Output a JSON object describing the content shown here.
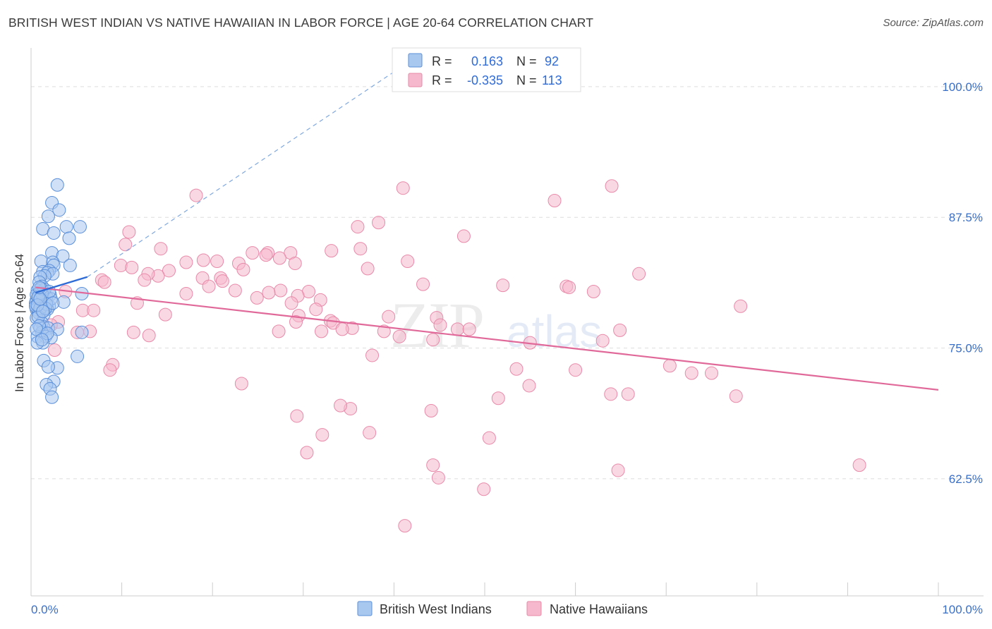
{
  "title": "BRITISH WEST INDIAN VS NATIVE HAWAIIAN IN LABOR FORCE | AGE 20-64 CORRELATION CHART",
  "source": "Source: ZipAtlas.com",
  "watermark": {
    "zip": "ZIP",
    "atlas": "atlas"
  },
  "colors": {
    "blue_fill": "#a9c8f0",
    "blue_stroke": "#5b8fd9",
    "blue_line": "#2f6bd6",
    "pink_fill": "#f6b8cc",
    "pink_stroke": "#e88aa9",
    "pink_line": "#e0699a",
    "grid": "#dddddd",
    "axis_label": "#3a6fc8"
  },
  "legend": {
    "rows": [
      {
        "r_label": "R =",
        "r_value": "0.163",
        "n_label": "N =",
        "n_value": "92"
      },
      {
        "r_label": "R =",
        "r_value": "-0.335",
        "n_label": "N =",
        "n_value": "113"
      }
    ]
  },
  "chart_data": {
    "type": "scatter",
    "title": "BRITISH WEST INDIAN VS NATIVE HAWAIIAN IN LABOR FORCE | AGE 20-64 CORRELATION CHART",
    "xlabel": "",
    "ylabel": "In Labor Force | Age 20-64",
    "xlim": [
      0,
      100
    ],
    "ylim": [
      51.3,
      103.7
    ],
    "x_tick_labels": [
      "0.0%",
      "100.0%"
    ],
    "y_ticks": [
      100.0,
      87.5,
      75.0,
      62.5
    ],
    "y_tick_labels": [
      "100.0%",
      "87.5%",
      "75.0%",
      "62.5%"
    ],
    "grid": true,
    "legend_placement": "top-center",
    "series": [
      {
        "name": "British West Indians",
        "r": 0.163,
        "n": 92,
        "trend": {
          "x0": 0.5,
          "y0": 80.3,
          "x1": 6.2,
          "y1": 81.8
        },
        "trend_dashed": {
          "x0": 6.2,
          "y0": 81.8,
          "x1": 40.5,
          "y1": 101.7
        },
        "points": [
          [
            2.9,
            90.6
          ],
          [
            2.3,
            88.9
          ],
          [
            3.1,
            88.2
          ],
          [
            1.9,
            87.6
          ],
          [
            5.4,
            86.6
          ],
          [
            3.9,
            86.6
          ],
          [
            1.3,
            86.4
          ],
          [
            2.5,
            86.0
          ],
          [
            4.2,
            85.5
          ],
          [
            2.3,
            84.1
          ],
          [
            3.5,
            83.8
          ],
          [
            1.1,
            83.3
          ],
          [
            2.4,
            83.2
          ],
          [
            4.3,
            82.9
          ],
          [
            2.5,
            82.9
          ],
          [
            2.0,
            82.4
          ],
          [
            1.3,
            82.3
          ],
          [
            1.8,
            82.2
          ],
          [
            2.4,
            82.1
          ],
          [
            1.5,
            81.9
          ],
          [
            1.0,
            81.8
          ],
          [
            0.9,
            81.3
          ],
          [
            1.2,
            80.9
          ],
          [
            0.7,
            80.5
          ],
          [
            0.9,
            80.3
          ],
          [
            1.4,
            80.3
          ],
          [
            5.6,
            80.2
          ],
          [
            2.1,
            80.1
          ],
          [
            1.0,
            80.0
          ],
          [
            1.7,
            79.9
          ],
          [
            0.8,
            79.8
          ],
          [
            1.1,
            79.6
          ],
          [
            0.6,
            79.6
          ],
          [
            1.3,
            79.5
          ],
          [
            0.9,
            79.4
          ],
          [
            1.5,
            79.4
          ],
          [
            3.6,
            79.4
          ],
          [
            0.5,
            79.3
          ],
          [
            0.9,
            79.2
          ],
          [
            1.6,
            79.1
          ],
          [
            1.1,
            79.0
          ],
          [
            2.0,
            79.0
          ],
          [
            0.7,
            78.9
          ],
          [
            1.2,
            78.9
          ],
          [
            0.6,
            78.7
          ],
          [
            1.8,
            78.7
          ],
          [
            1.4,
            78.6
          ],
          [
            0.8,
            78.4
          ],
          [
            0.9,
            78.3
          ],
          [
            1.4,
            78.2
          ],
          [
            0.6,
            77.9
          ],
          [
            1.2,
            77.4
          ],
          [
            1.4,
            77.0
          ],
          [
            1.0,
            76.9
          ],
          [
            1.9,
            76.9
          ],
          [
            2.9,
            76.8
          ],
          [
            5.6,
            76.5
          ],
          [
            1.2,
            76.5
          ],
          [
            0.7,
            76.1
          ],
          [
            1.6,
            76.1
          ],
          [
            2.2,
            76.0
          ],
          [
            1.3,
            75.5
          ],
          [
            0.7,
            75.5
          ],
          [
            5.1,
            74.2
          ],
          [
            1.4,
            73.8
          ],
          [
            2.9,
            73.1
          ],
          [
            1.9,
            73.2
          ],
          [
            2.5,
            71.8
          ],
          [
            1.7,
            71.5
          ],
          [
            2.1,
            71.1
          ],
          [
            2.3,
            70.3
          ],
          [
            0.5,
            79.0
          ],
          [
            1.0,
            78.8
          ],
          [
            0.6,
            80.1
          ],
          [
            0.8,
            78.0
          ],
          [
            1.5,
            80.6
          ],
          [
            2.2,
            79.7
          ],
          [
            1.2,
            80.2
          ],
          [
            0.9,
            77.1
          ],
          [
            1.7,
            79.2
          ],
          [
            1.1,
            80.7
          ],
          [
            0.8,
            79.9
          ],
          [
            1.6,
            78.8
          ],
          [
            2.0,
            80.4
          ],
          [
            0.7,
            79.1
          ],
          [
            1.3,
            78.5
          ],
          [
            1.0,
            79.7
          ],
          [
            2.4,
            79.3
          ],
          [
            0.6,
            76.8
          ],
          [
            1.8,
            76.4
          ],
          [
            1.2,
            75.8
          ],
          [
            0.9,
            80.8
          ]
        ]
      },
      {
        "name": "Native Hawaiians",
        "r": -0.335,
        "n": 113,
        "trend": {
          "x0": 0.5,
          "y0": 80.8,
          "x1": 100.0,
          "y1": 71.0
        },
        "points": [
          [
            41.0,
            90.3
          ],
          [
            64.0,
            90.5
          ],
          [
            18.2,
            89.6
          ],
          [
            57.7,
            89.1
          ],
          [
            38.3,
            87.0
          ],
          [
            36.0,
            86.6
          ],
          [
            10.8,
            86.1
          ],
          [
            47.7,
            85.7
          ],
          [
            10.4,
            84.9
          ],
          [
            14.3,
            84.5
          ],
          [
            36.3,
            84.5
          ],
          [
            33.1,
            84.3
          ],
          [
            28.6,
            84.1
          ],
          [
            24.4,
            84.1
          ],
          [
            26.1,
            84.1
          ],
          [
            25.9,
            83.9
          ],
          [
            27.4,
            83.6
          ],
          [
            19.0,
            83.4
          ],
          [
            20.5,
            83.3
          ],
          [
            17.1,
            83.2
          ],
          [
            22.9,
            83.1
          ],
          [
            41.5,
            83.3
          ],
          [
            29.1,
            83.1
          ],
          [
            9.9,
            82.9
          ],
          [
            11.1,
            82.7
          ],
          [
            15.2,
            82.4
          ],
          [
            23.4,
            82.5
          ],
          [
            14.0,
            81.9
          ],
          [
            12.9,
            82.1
          ],
          [
            67.0,
            82.1
          ],
          [
            18.9,
            81.7
          ],
          [
            20.9,
            81.7
          ],
          [
            21.1,
            81.4
          ],
          [
            7.8,
            81.5
          ],
          [
            8.1,
            81.3
          ],
          [
            12.5,
            81.5
          ],
          [
            43.2,
            81.1
          ],
          [
            59.0,
            80.9
          ],
          [
            59.3,
            80.8
          ],
          [
            22.5,
            80.5
          ],
          [
            27.5,
            80.5
          ],
          [
            30.6,
            80.4
          ],
          [
            26.2,
            80.3
          ],
          [
            17.1,
            80.2
          ],
          [
            62.0,
            80.4
          ],
          [
            3.8,
            80.4
          ],
          [
            29.4,
            80.0
          ],
          [
            31.9,
            79.6
          ],
          [
            28.7,
            79.3
          ],
          [
            11.7,
            79.3
          ],
          [
            31.4,
            78.7
          ],
          [
            78.2,
            79.0
          ],
          [
            5.7,
            78.6
          ],
          [
            6.9,
            78.6
          ],
          [
            14.8,
            78.2
          ],
          [
            29.5,
            78.1
          ],
          [
            39.4,
            78.0
          ],
          [
            44.7,
            77.9
          ],
          [
            33.0,
            77.6
          ],
          [
            3.0,
            77.5
          ],
          [
            33.3,
            77.4
          ],
          [
            29.2,
            77.5
          ],
          [
            45.1,
            77.2
          ],
          [
            2.2,
            77.2
          ],
          [
            35.4,
            76.9
          ],
          [
            34.3,
            76.8
          ],
          [
            32.0,
            76.6
          ],
          [
            27.3,
            76.6
          ],
          [
            11.3,
            76.5
          ],
          [
            5.1,
            76.5
          ],
          [
            64.9,
            76.7
          ],
          [
            47.0,
            76.8
          ],
          [
            48.3,
            76.8
          ],
          [
            38.9,
            76.6
          ],
          [
            6.5,
            76.6
          ],
          [
            13.0,
            76.2
          ],
          [
            40.6,
            76.1
          ],
          [
            44.3,
            75.8
          ],
          [
            63.0,
            75.7
          ],
          [
            55.0,
            75.5
          ],
          [
            2.6,
            74.8
          ],
          [
            37.6,
            74.3
          ],
          [
            9.0,
            73.4
          ],
          [
            8.7,
            72.9
          ],
          [
            70.4,
            73.3
          ],
          [
            53.5,
            73.0
          ],
          [
            60.0,
            72.9
          ],
          [
            72.8,
            72.6
          ],
          [
            75.0,
            72.6
          ],
          [
            23.2,
            71.6
          ],
          [
            54.9,
            71.4
          ],
          [
            63.9,
            70.6
          ],
          [
            65.8,
            70.6
          ],
          [
            77.7,
            70.4
          ],
          [
            51.5,
            70.2
          ],
          [
            35.2,
            69.2
          ],
          [
            44.1,
            69.0
          ],
          [
            29.3,
            68.5
          ],
          [
            37.3,
            66.9
          ],
          [
            32.1,
            66.7
          ],
          [
            50.5,
            66.4
          ],
          [
            30.4,
            65.0
          ],
          [
            44.3,
            63.8
          ],
          [
            64.7,
            63.3
          ],
          [
            91.3,
            63.8
          ],
          [
            44.9,
            62.6
          ],
          [
            49.9,
            61.5
          ],
          [
            41.2,
            58.0
          ],
          [
            34.1,
            69.5
          ],
          [
            19.6,
            80.9
          ],
          [
            24.9,
            79.8
          ],
          [
            37.1,
            82.6
          ],
          [
            52.0,
            81.0
          ]
        ]
      }
    ]
  }
}
